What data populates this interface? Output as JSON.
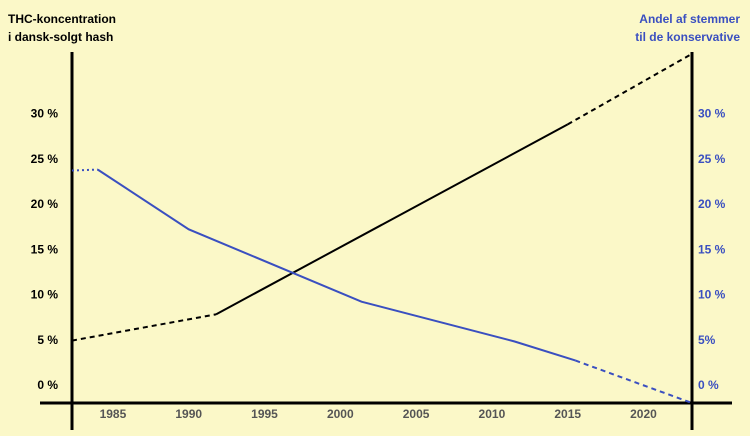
{
  "chart_data": {
    "type": "line",
    "y_label": [
      "THC-koncentration",
      "i dansk-solgt hash"
    ],
    "y2_label": [
      "Andel af stemmer",
      "til de konservative"
    ],
    "y2_color": "#3a4fc0",
    "xlim": [
      1982.3,
      2023.2
    ],
    "xticks": [
      1985,
      1990,
      1995,
      2000,
      2005,
      2010,
      2015,
      2020
    ],
    "ylim": [
      -1.9,
      36.9
    ],
    "yticks": [
      {
        "value": 0,
        "label": "0 %"
      },
      {
        "value": 5,
        "label": "5 %"
      },
      {
        "value": 10,
        "label": "10 %"
      },
      {
        "value": 15,
        "label": "15 %"
      },
      {
        "value": 20,
        "label": "20 %"
      },
      {
        "value": 25,
        "label": "25 %"
      },
      {
        "value": 30,
        "label": "30 %"
      }
    ],
    "y2lim": [
      -1.9,
      36.9
    ],
    "y2ticks": [
      {
        "value": 0,
        "label": "0 %"
      },
      {
        "value": 5,
        "label": "5%"
      },
      {
        "value": 10,
        "label": "10 %"
      },
      {
        "value": 15,
        "label": "15 %"
      },
      {
        "value": 20,
        "label": "20 %"
      },
      {
        "value": 25,
        "label": "25 %"
      },
      {
        "value": 30,
        "label": "30 %"
      }
    ],
    "series": [
      {
        "color": "#000000",
        "style": "dashed",
        "x": [
          1982.3,
          1991.8
        ],
        "values": [
          5.0,
          7.9
        ]
      },
      {
        "color": "#000000",
        "style": "solid",
        "x": [
          1991.8,
          2015.0
        ],
        "values": [
          7.9,
          28.9
        ]
      },
      {
        "color": "#000000",
        "style": "dashed",
        "x": [
          2015.0,
          2023.2
        ],
        "values": [
          28.9,
          36.7
        ]
      },
      {
        "color": "#3a4fc0",
        "style": "dotted",
        "axis": "y2",
        "x": [
          1982.3,
          1984.0
        ],
        "values": [
          23.8,
          23.9
        ]
      },
      {
        "color": "#3a4fc0",
        "style": "solid",
        "axis": "y2",
        "x": [
          1984.0,
          1990.0,
          2001.4,
          2011.5,
          2015.5
        ],
        "values": [
          23.9,
          17.3,
          9.3,
          4.9,
          2.8
        ]
      },
      {
        "color": "#3a4fc0",
        "style": "dashed",
        "axis": "y2",
        "x": [
          2015.5,
          2023.2
        ],
        "values": [
          2.8,
          -1.9
        ]
      }
    ]
  }
}
